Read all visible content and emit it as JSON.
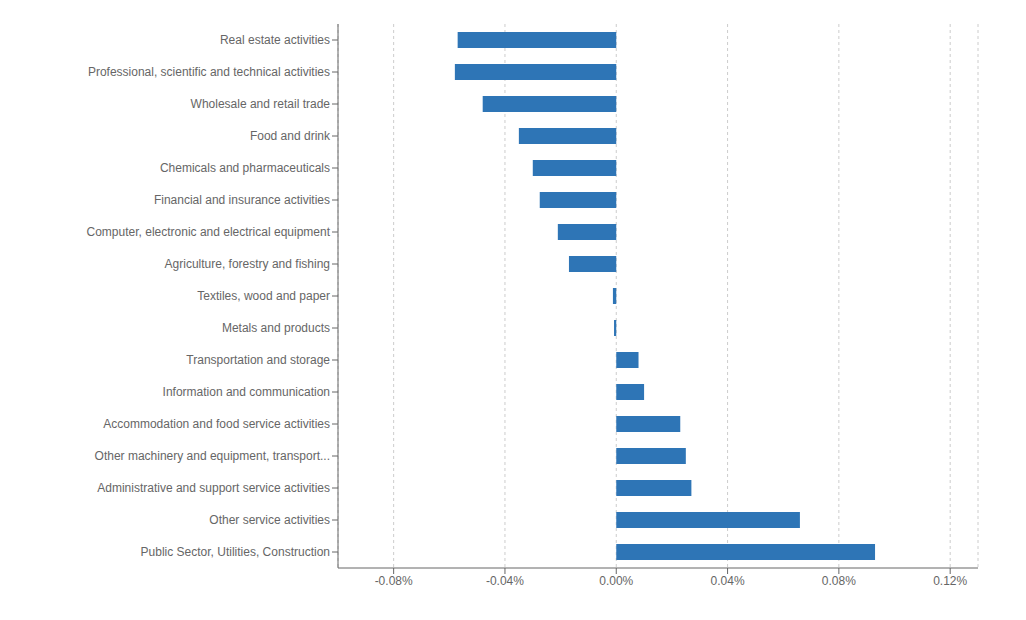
{
  "chart_data": {
    "type": "bar",
    "orientation": "horizontal",
    "categories": [
      "Real estate activities",
      "Professional, scientific and technical activities",
      "Wholesale and retail trade",
      "Food and drink",
      "Chemicals and pharmaceuticals",
      "Financial and insurance activities",
      "Computer, electronic and electrical equipment",
      "Agriculture, forestry and fishing",
      "Textiles, wood and paper",
      "Metals and products",
      "Transportation and storage",
      "Information and communication",
      "Accommodation and food service activities",
      "Other machinery and equipment, transport...",
      "Administrative and support service activities",
      "Other service activities",
      "Public Sector, Utilities, Construction"
    ],
    "values": [
      -0.057,
      -0.058,
      -0.048,
      -0.035,
      -0.03,
      -0.0275,
      -0.021,
      -0.017,
      -0.0012,
      -0.0008,
      0.008,
      0.01,
      0.023,
      0.025,
      0.027,
      0.066,
      0.093
    ],
    "color": "#2E75B6",
    "xlim": [
      -0.1,
      0.13
    ],
    "xticks": [
      {
        "value": -0.08,
        "label": "-0.08%"
      },
      {
        "value": -0.04,
        "label": "-0.04%"
      },
      {
        "value": 0.0,
        "label": "0.00%"
      },
      {
        "value": 0.04,
        "label": "0.04%"
      },
      {
        "value": 0.08,
        "label": "0.08%"
      },
      {
        "value": 0.12,
        "label": "0.12%"
      }
    ],
    "grid": true
  }
}
